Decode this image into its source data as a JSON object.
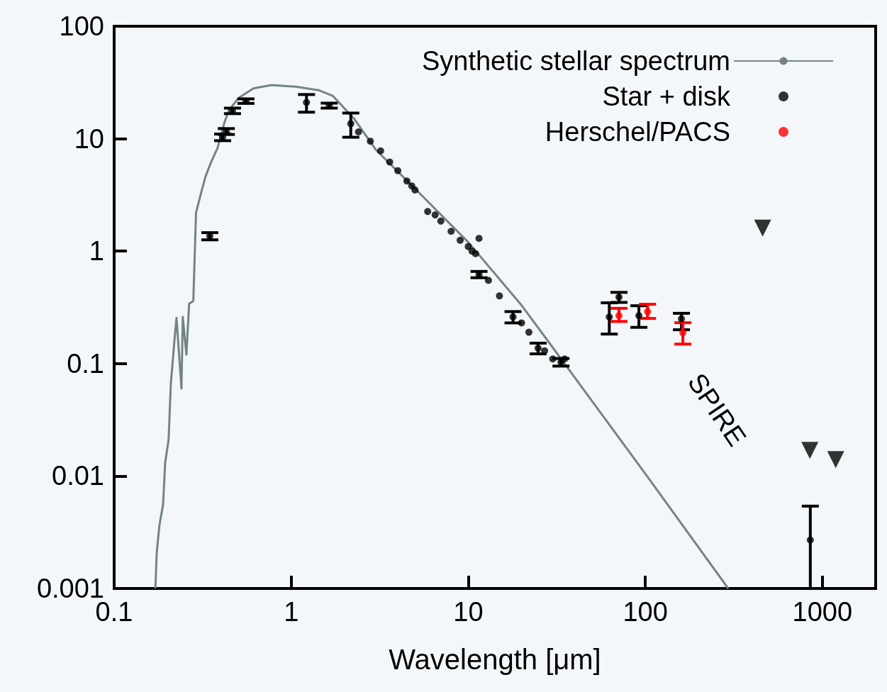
{
  "chart_data": {
    "type": "scatter",
    "xlabel": "Wavelength [μm]",
    "log": "xy",
    "xlim": [
      0.1,
      2000
    ],
    "xticks": [
      0.1,
      1,
      10,
      100,
      1000
    ],
    "ylim": [
      0.001,
      100
    ],
    "yticks": [
      0.001,
      0.01,
      0.1,
      1,
      10,
      100
    ],
    "legend": "top right",
    "annotations": [
      "SPIRE"
    ],
    "series": [
      {
        "name": "Synthetic stellar spectrum",
        "type": "line",
        "marker": "none",
        "color": "#728583",
        "x": [
          0.171,
          0.174,
          0.18,
          0.189,
          0.194,
          0.203,
          0.209,
          0.22,
          0.225,
          0.24,
          0.244,
          0.256,
          0.265,
          0.28,
          0.29,
          0.313,
          0.328,
          0.353,
          0.384,
          0.42,
          0.445,
          0.505,
          0.61,
          0.77,
          1.06,
          1.43,
          1.72,
          2.27,
          3,
          5,
          10,
          20,
          35,
          100,
          294
        ],
        "values": [
          0.001,
          0.0021,
          0.0036,
          0.0056,
          0.013,
          0.021,
          0.066,
          0.175,
          0.255,
          0.06,
          0.26,
          0.12,
          0.34,
          0.36,
          2.2,
          3.5,
          4.6,
          6.2,
          8.3,
          14,
          18,
          23,
          28,
          30,
          29,
          27,
          24,
          15,
          8,
          3.6,
          1.2,
          0.33,
          0.1,
          0.0105,
          0.001
        ]
      },
      {
        "name": "Star + disk",
        "marker": "circle",
        "color": "#000000",
        "x": [
          0.347,
          0.41,
          0.43,
          0.466,
          0.555,
          1.22,
          1.64,
          2.17,
          2.4,
          2.8,
          3.2,
          3.6,
          4.0,
          4.5,
          4.8,
          5.0,
          5.9,
          6.5,
          7.0,
          8.0,
          9.0,
          10,
          10.5,
          11,
          11.5,
          11.5,
          13,
          15,
          17.9,
          20,
          22,
          24.8,
          27,
          30,
          33.4,
          35,
          62.6,
          71,
          92,
          160,
          855
        ],
        "values": [
          1.36,
          10.3,
          11.6,
          17.7,
          21.6,
          21,
          19.7,
          13.6,
          11.5,
          9.5,
          7.8,
          6.2,
          5.2,
          4.2,
          3.8,
          3.5,
          2.25,
          2.1,
          1.85,
          1.5,
          1.25,
          1.1,
          1.0,
          0.95,
          1.3,
          0.62,
          0.55,
          0.4,
          0.26,
          0.23,
          0.19,
          0.137,
          0.13,
          0.11,
          0.103,
          0.11,
          0.26,
          0.39,
          0.267,
          0.25,
          0.0027
        ],
        "errors": [
          [
            1.26,
            1.46
          ],
          [
            9.6,
            11
          ],
          [
            10.9,
            12.3
          ],
          [
            16.7,
            18.7
          ],
          [
            20.6,
            22.6
          ],
          [
            17.2,
            24.7
          ],
          [
            18.7,
            20.7
          ],
          [
            10.3,
            16.9
          ],
          null,
          null,
          null,
          null,
          null,
          null,
          null,
          null,
          null,
          null,
          null,
          null,
          null,
          null,
          null,
          null,
          null,
          [
            0.58,
            0.66
          ],
          null,
          null,
          [
            0.23,
            0.29
          ],
          null,
          null,
          [
            0.122,
            0.152
          ],
          null,
          null,
          [
            0.095,
            0.111
          ],
          null,
          [
            0.183,
            0.347
          ],
          [
            0.35,
            0.43
          ],
          [
            0.21,
            0.327
          ],
          [
            0.2,
            0.28
          ],
          [
            0.001,
            0.0054
          ]
        ]
      },
      {
        "name": "Herschel/PACS",
        "marker": "circle",
        "color": "#ff0000",
        "x": [
          71,
          103,
          163
        ],
        "values": [
          0.267,
          0.29,
          0.188
        ],
        "errors": [
          [
            0.237,
            0.31
          ],
          [
            0.252,
            0.337
          ],
          [
            0.149,
            0.231
          ]
        ]
      },
      {
        "marker": "triangle",
        "color": "#000000",
        "x": [
          460,
          850,
          1190
        ],
        "values": [
          1.6,
          0.0169,
          0.014
        ]
      }
    ]
  }
}
